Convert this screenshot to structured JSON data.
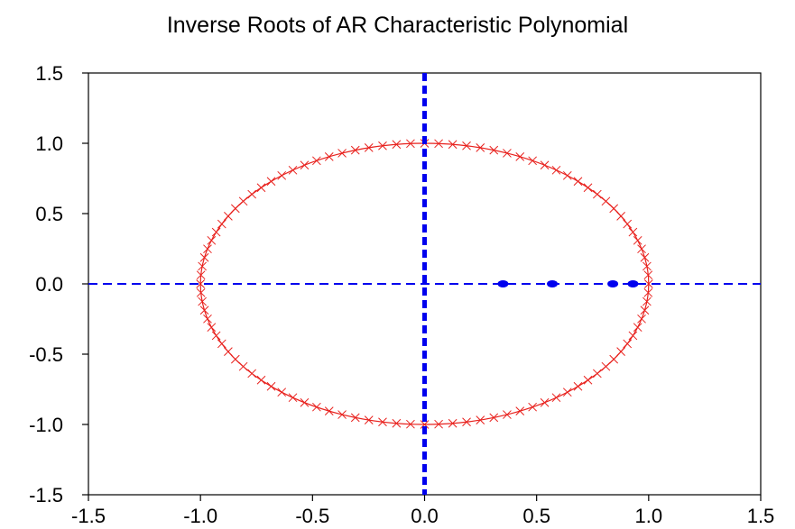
{
  "chart_data": {
    "type": "scatter",
    "title": "Inverse Roots of AR Characteristic Polynomial",
    "xlabel": "",
    "ylabel": "",
    "xlim": [
      -1.5,
      1.5
    ],
    "ylim": [
      -1.5,
      1.5
    ],
    "x_ticks": [
      -1.5,
      -1.0,
      -0.5,
      0.0,
      0.5,
      1.0,
      1.5
    ],
    "x_tick_labels": [
      "-1.5",
      "-1.0",
      "-0.5",
      "0.0",
      "0.5",
      "1.0",
      "1.5"
    ],
    "y_ticks": [
      1.5,
      1.0,
      0.5,
      0.0,
      -0.5,
      -1.0,
      -1.5
    ],
    "y_tick_labels": [
      "1.5",
      "1.0",
      "0.5",
      "0.0",
      "-0.5",
      "-1.0",
      "-1.5"
    ],
    "grid": false,
    "unit_circle": {
      "radius": 1.0,
      "color": "#e8211d",
      "marker": "x"
    },
    "axis_lines": {
      "color": "#0000ee",
      "style": "dashed"
    },
    "roots": {
      "color": "#0000ee",
      "points": [
        {
          "x": 0.35,
          "y": 0.0
        },
        {
          "x": 0.57,
          "y": 0.0
        },
        {
          "x": 0.84,
          "y": 0.0
        },
        {
          "x": 0.93,
          "y": 0.0
        }
      ]
    }
  }
}
